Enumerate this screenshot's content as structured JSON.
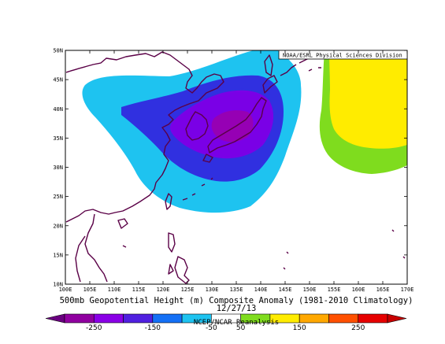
{
  "map": {
    "credit": "NOAA/ESRL Physical Sciences Division",
    "title": "500mb Geopotential Height (m) Composite Anomaly (1981-2010 Climatology)",
    "date": "12/27/13",
    "source": "NCEP/NCAR Reanalysis",
    "lon_labels": [
      "100E",
      "105E",
      "110E",
      "115E",
      "120E",
      "125E",
      "130E",
      "135E",
      "140E",
      "145E",
      "150E",
      "155E",
      "160E",
      "165E",
      "170E"
    ],
    "lat_labels": [
      "50N",
      "45N",
      "40N",
      "35N",
      "30N",
      "25N",
      "20N",
      "15N",
      "10N"
    ],
    "lon_range": [
      100,
      170
    ],
    "lat_range": [
      10,
      50
    ]
  },
  "colorbar": {
    "labels": [
      "-250",
      "-150",
      "-50",
      "50",
      "150",
      "250"
    ],
    "colors": [
      "#9000a0",
      "#8a00e6",
      "#5020e0",
      "#1470f5",
      "#1ec3f0",
      "#ffffff",
      "#7fdc1e",
      "#ffec00",
      "#ffa800",
      "#ff5000",
      "#e60000"
    ],
    "end_left_color": "#6a0080",
    "end_right_color": "#c80000"
  },
  "anomaly_colors": {
    "level_light_blue": "#1ec3f0",
    "level_blue": "#3030e0",
    "level_violet": "#7a00e6",
    "level_purple": "#9600b4",
    "level_green": "#7fdc1e",
    "level_yellow": "#ffec00",
    "coast": "#5a0046"
  }
}
